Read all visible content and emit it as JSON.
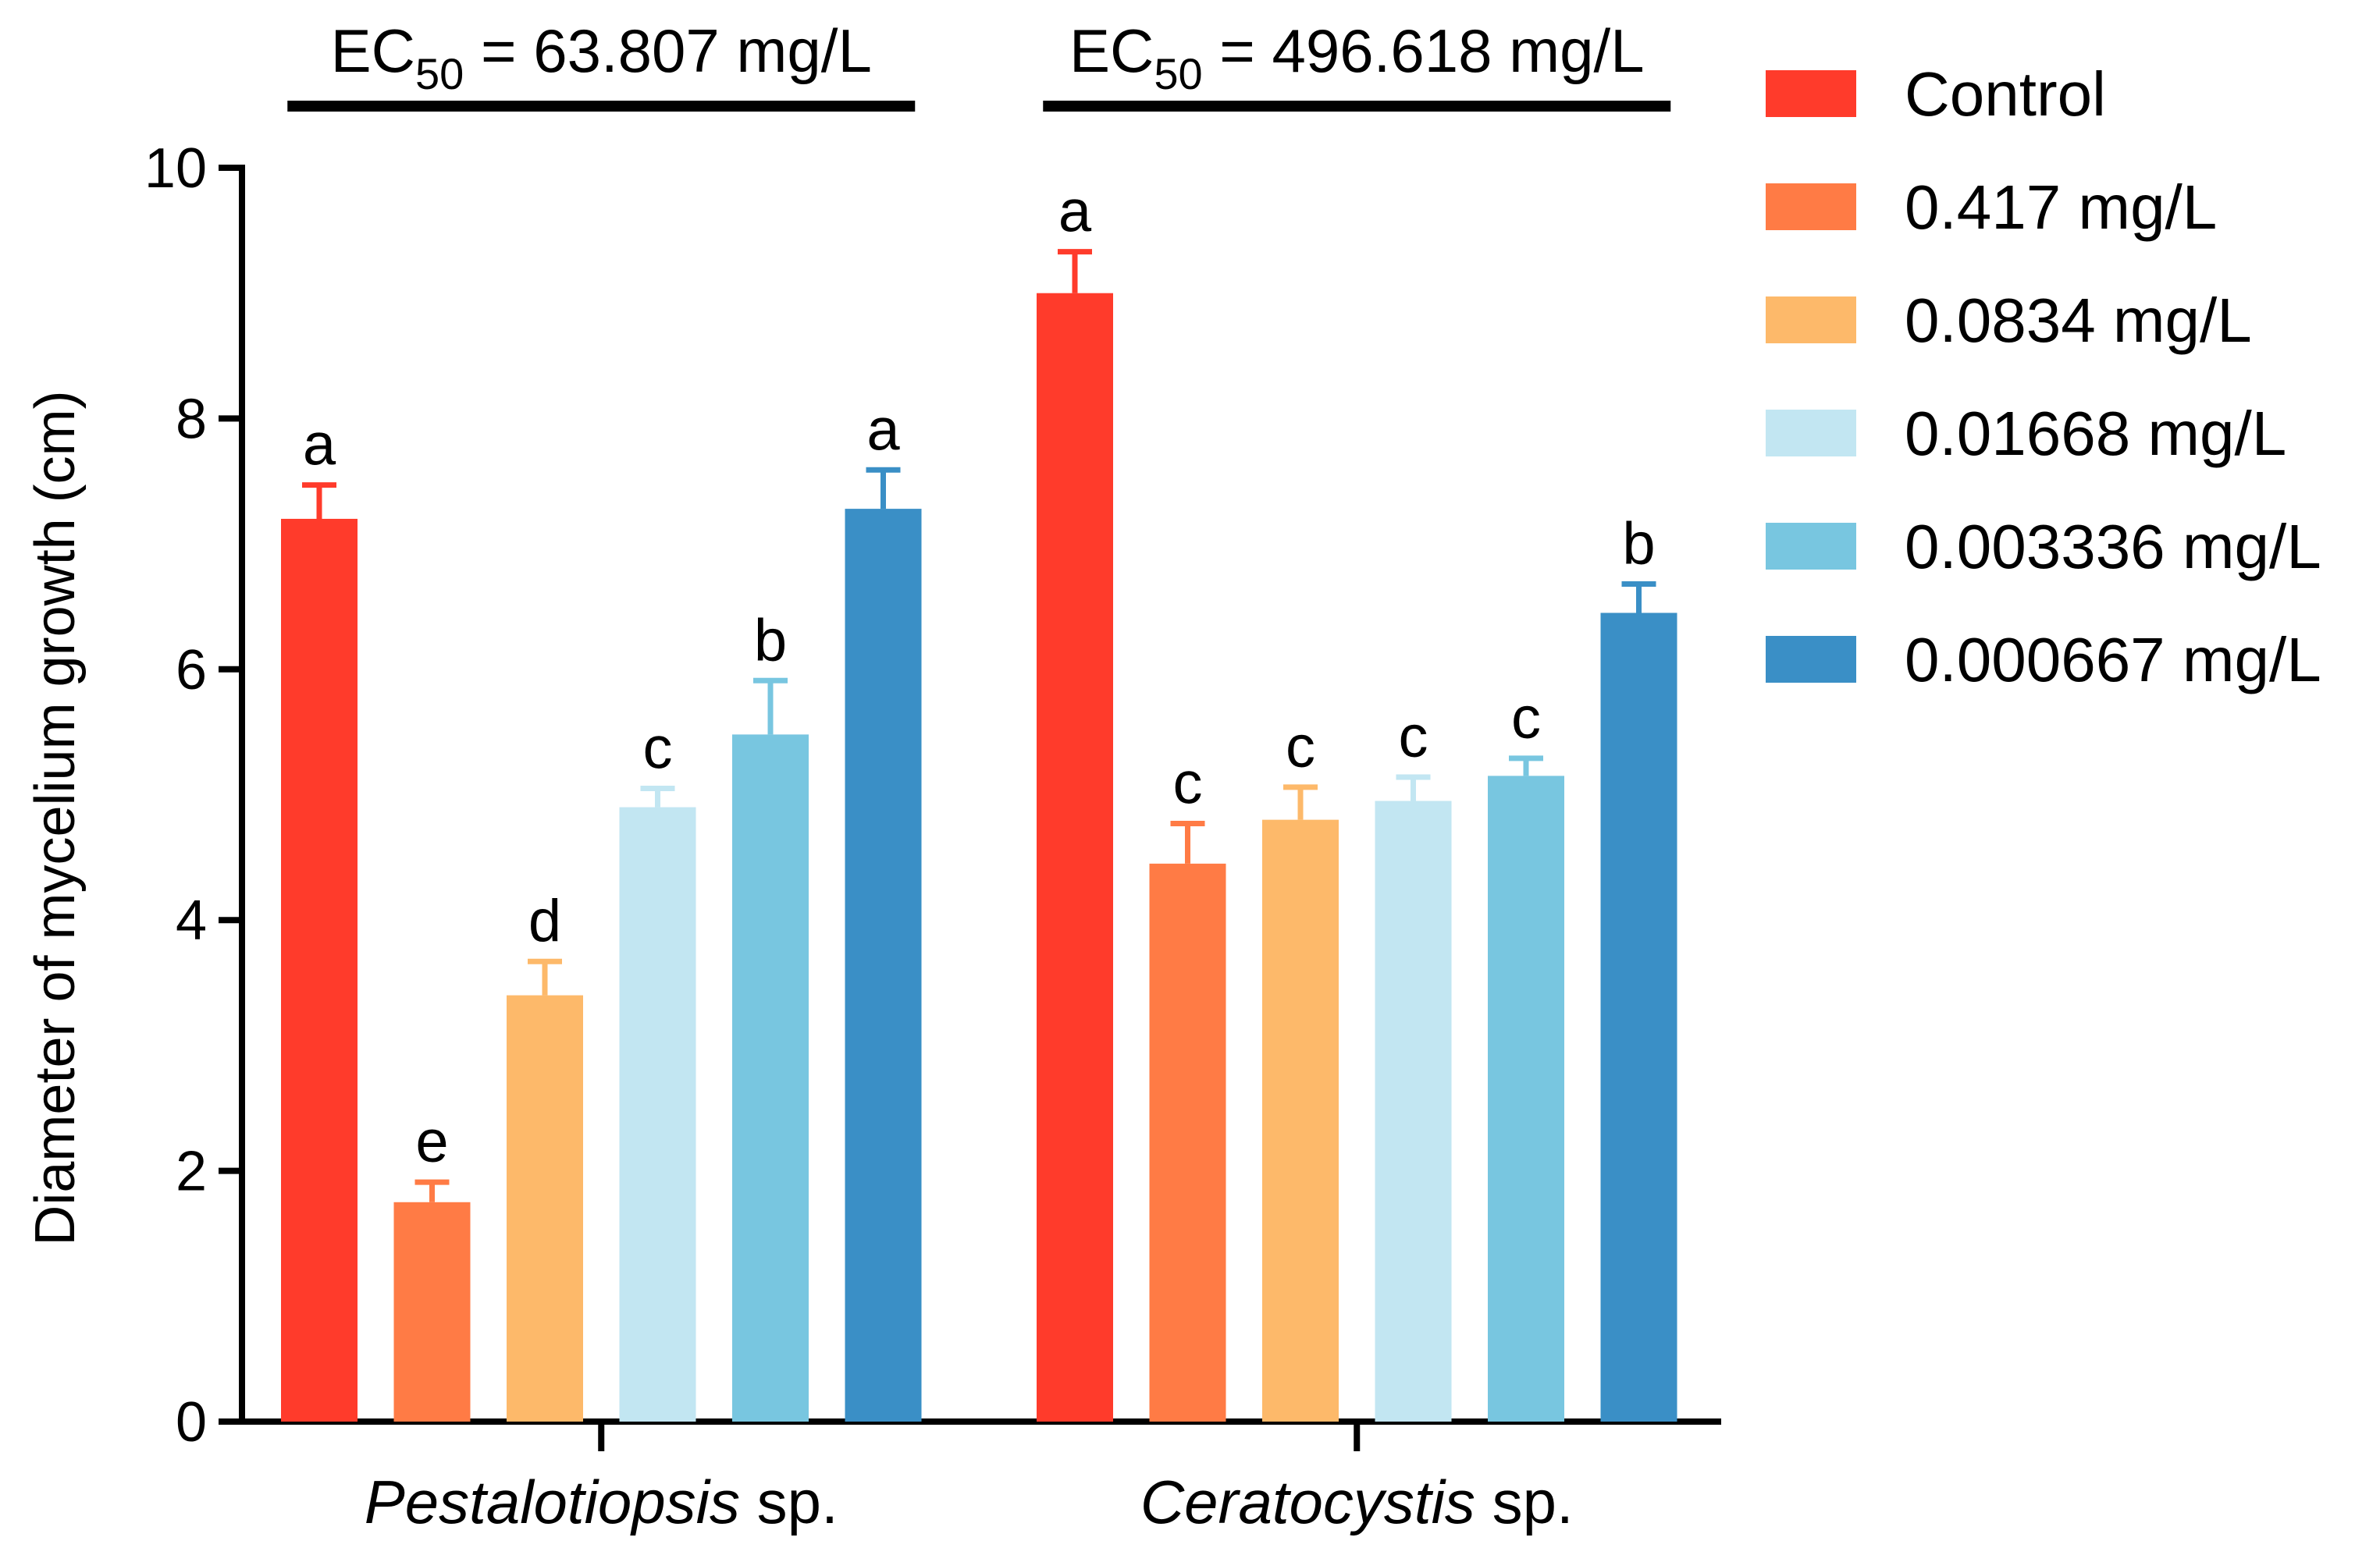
{
  "chart_data": {
    "type": "bar",
    "ylabel": "Diameter of mycelium growth (cm)",
    "xlabel": "",
    "ylim": [
      0,
      10
    ],
    "yticks": [
      0,
      2,
      4,
      6,
      8,
      10
    ],
    "grid": false,
    "legend_position": "right",
    "groups": [
      {
        "name": "Pestalotiopsis",
        "suffix": " sp.",
        "ec50_prefix": "EC",
        "ec50_sub": "50",
        "ec50_value": " = 63.807 mg/L"
      },
      {
        "name": "Ceratocystis",
        "suffix": " sp.",
        "ec50_prefix": "EC",
        "ec50_sub": "50",
        "ec50_value": " = 496.618 mg/L"
      }
    ],
    "series": [
      {
        "name": "Control",
        "color": "#ff3b2b",
        "values": [
          7.2,
          9.0
        ],
        "errors": [
          0.27,
          0.33
        ],
        "letters": [
          "a",
          "a"
        ]
      },
      {
        "name": "0.417 mg/L",
        "color": "#ff7b45",
        "values": [
          1.75,
          4.45
        ],
        "errors": [
          0.16,
          0.32
        ],
        "letters": [
          "e",
          "c"
        ]
      },
      {
        "name": "0.0834 mg/L",
        "color": "#fdb96a",
        "values": [
          3.4,
          4.8
        ],
        "errors": [
          0.27,
          0.26
        ],
        "letters": [
          "d",
          "c"
        ]
      },
      {
        "name": "0.01668 mg/L",
        "color": "#c2e6f2",
        "values": [
          4.9,
          4.95
        ],
        "errors": [
          0.15,
          0.19
        ],
        "letters": [
          "c",
          "c"
        ]
      },
      {
        "name": "0.003336 mg/L",
        "color": "#78c6e0",
        "values": [
          5.48,
          5.15
        ],
        "errors": [
          0.43,
          0.14
        ],
        "letters": [
          "b",
          "c"
        ]
      },
      {
        "name": "0.000667 mg/L",
        "color": "#3a8fc6",
        "values": [
          7.28,
          6.45
        ],
        "errors": [
          0.31,
          0.23
        ],
        "letters": [
          "a",
          "b"
        ]
      }
    ]
  }
}
